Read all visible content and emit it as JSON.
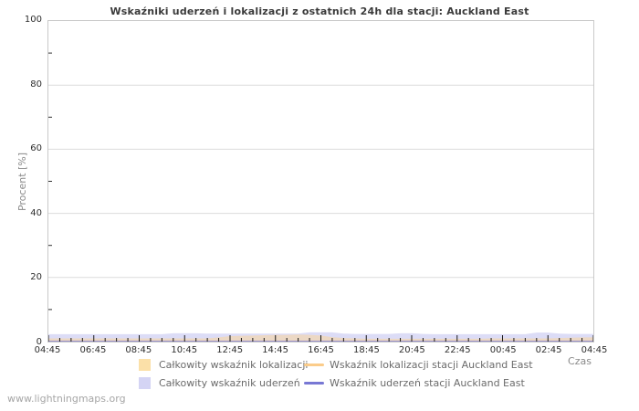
{
  "watermark": "www.lightningmaps.org",
  "chart_data": {
    "type": "area",
    "title": "Wskaźniki uderzeń i lokalizacji z ostatnich 24h dla stacji: Auckland East",
    "xlabel": "Czas",
    "ylabel": "Procent  [%]",
    "ylim": [
      0,
      100
    ],
    "grid": "horizontal-major",
    "legend_position": "bottom",
    "y_major_ticks": [
      0,
      20,
      40,
      60,
      80,
      100
    ],
    "y_minor_ticks": [
      10,
      30,
      50,
      70,
      90
    ],
    "x_tick_labels": [
      "04:45",
      "06:45",
      "08:45",
      "10:45",
      "12:45",
      "14:45",
      "16:45",
      "18:45",
      "20:45",
      "22:45",
      "00:45",
      "02:45",
      "04:45"
    ],
    "x_minor_tick_interval_minutes": 30,
    "x": [
      "04:45",
      "05:15",
      "05:45",
      "06:15",
      "06:45",
      "07:15",
      "07:45",
      "08:15",
      "08:45",
      "09:15",
      "09:45",
      "10:15",
      "10:45",
      "11:15",
      "11:45",
      "12:15",
      "12:45",
      "13:15",
      "13:45",
      "14:15",
      "14:45",
      "15:15",
      "15:45",
      "16:15",
      "16:45",
      "17:15",
      "17:45",
      "18:15",
      "18:45",
      "19:15",
      "19:45",
      "20:15",
      "20:45",
      "21:15",
      "21:45",
      "22:15",
      "22:45",
      "23:15",
      "23:45",
      "00:15",
      "00:45",
      "01:15",
      "01:45",
      "02:15",
      "02:45",
      "03:15",
      "03:45",
      "04:15",
      "04:45"
    ],
    "series": [
      {
        "name": "Całkowity wskaźnik lokalizacji",
        "type": "area",
        "color": "#fbe0a8",
        "fill": "rgba(250,214,155,0.55)",
        "values": [
          1.0,
          1.0,
          1.0,
          1.0,
          1.0,
          1.0,
          1.0,
          1.0,
          1.0,
          1.0,
          1.0,
          1.0,
          1.0,
          1.0,
          1.0,
          1.3,
          1.7,
          1.8,
          1.9,
          2.0,
          2.1,
          2.1,
          2.2,
          2.1,
          1.9,
          1.4,
          1.1,
          1.0,
          0.9,
          0.9,
          0.9,
          0.9,
          0.9,
          0.9,
          0.9,
          0.9,
          0.9,
          0.9,
          0.9,
          1.0,
          1.0,
          1.0,
          1.0,
          1.0,
          1.0,
          1.1,
          1.2,
          1.3,
          1.3
        ]
      },
      {
        "name": "Całkowity wskaźnik uderzeń",
        "type": "area",
        "color": "#d4d4f4",
        "fill": "rgba(201,201,241,0.65)",
        "values": [
          2.3,
          2.3,
          2.3,
          2.3,
          2.3,
          2.3,
          2.3,
          2.3,
          2.3,
          2.3,
          2.3,
          2.6,
          2.6,
          2.6,
          2.5,
          2.5,
          2.5,
          2.5,
          2.5,
          2.5,
          2.5,
          2.5,
          2.5,
          2.9,
          2.9,
          2.9,
          2.5,
          2.4,
          2.4,
          2.4,
          2.4,
          2.6,
          2.6,
          2.4,
          2.3,
          2.3,
          2.3,
          2.3,
          2.3,
          2.3,
          2.3,
          2.3,
          2.3,
          2.8,
          2.8,
          2.5,
          2.4,
          2.4,
          2.4
        ]
      },
      {
        "name": "Wskaźnik lokalizacji stacji Auckland East",
        "type": "line",
        "color": "#fbcc8a",
        "values": [
          0,
          0,
          0,
          0,
          0,
          0,
          0,
          0,
          0,
          0,
          0,
          0,
          0,
          0,
          0,
          0,
          0,
          0,
          0,
          0,
          0,
          0,
          0,
          0,
          0,
          0,
          0,
          0,
          0,
          0,
          0,
          0,
          0,
          0,
          0,
          0,
          0,
          0,
          0,
          0,
          0,
          0,
          0,
          0,
          0,
          0,
          0,
          0,
          0
        ]
      },
      {
        "name": "Wskaźnik uderzeń stacji Auckland East",
        "type": "line",
        "color": "#7878d4",
        "values": [
          0,
          0,
          0,
          0,
          0,
          0,
          0,
          0,
          0,
          0,
          0,
          0,
          0,
          0,
          0,
          0,
          0,
          0,
          0,
          0,
          0,
          0,
          0,
          0,
          0,
          0,
          0,
          0,
          0,
          0,
          0,
          0,
          0,
          0,
          0,
          0,
          0,
          0,
          0,
          0,
          0,
          0,
          0,
          0,
          0,
          0,
          0,
          0,
          0
        ]
      }
    ]
  }
}
